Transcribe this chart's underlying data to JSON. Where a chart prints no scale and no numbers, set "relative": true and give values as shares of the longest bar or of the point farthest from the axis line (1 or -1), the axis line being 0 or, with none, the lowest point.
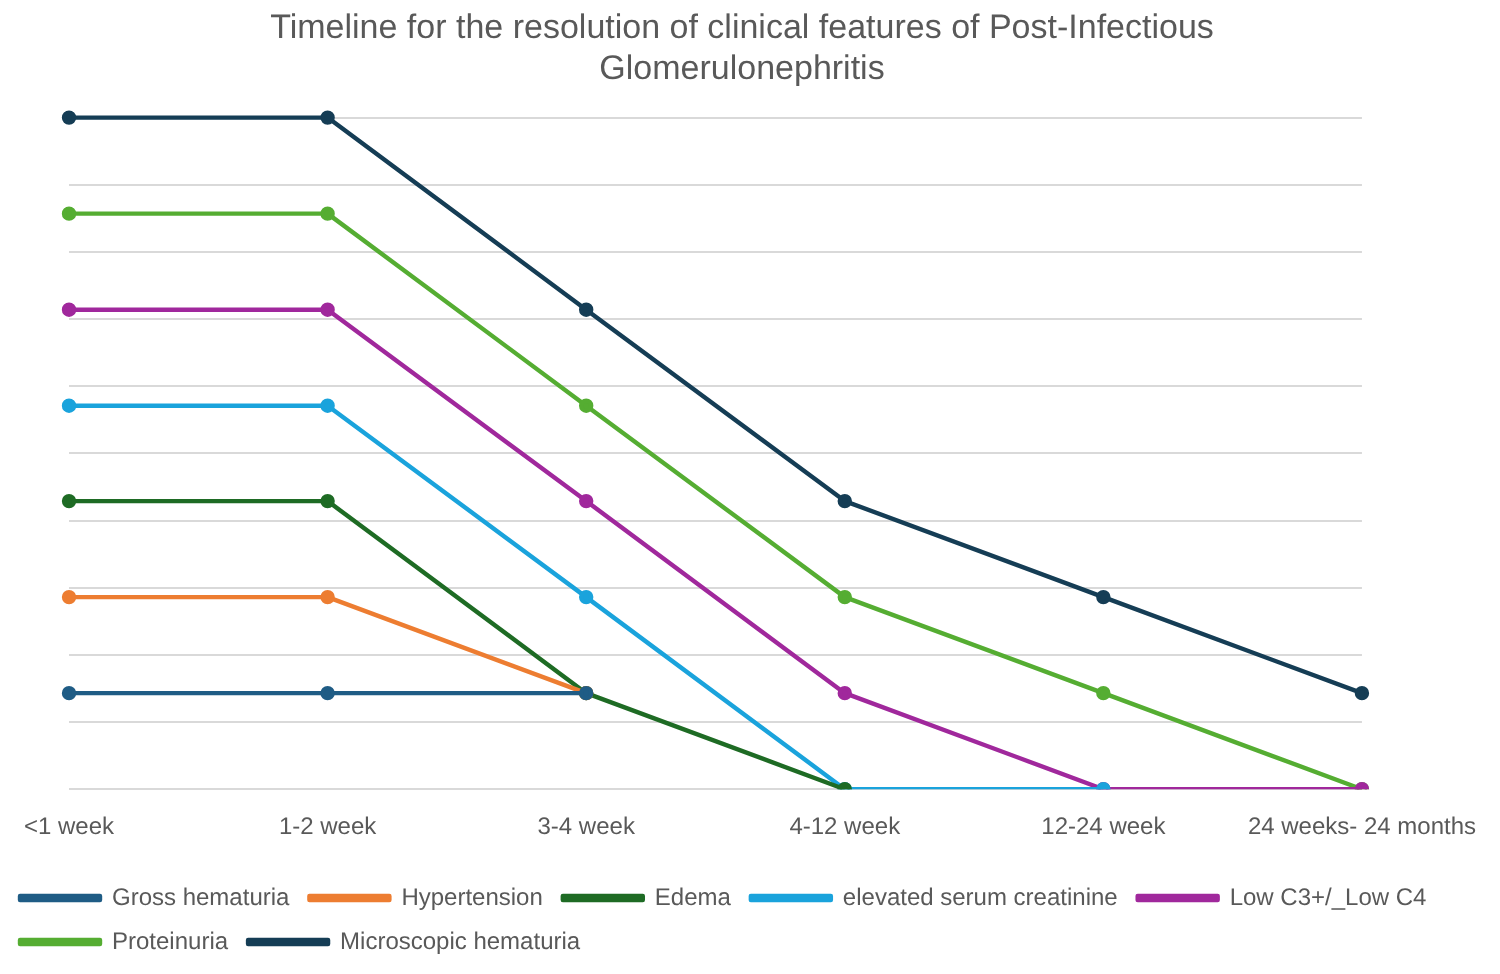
{
  "chart_data": {
    "type": "line",
    "relative": true,
    "title": "Timeline for the resolution of clinical features of Post-Infectious Glomerulonephritis",
    "categories": [
      "<1 week",
      "1-2 week",
      "3-4 week",
      "4-12 week",
      "12-24 week",
      "24 weeks- 24 months"
    ],
    "series": [
      {
        "name": "Gross hematuria",
        "color": "#1f5c85",
        "values": [
          0.143,
          0.143,
          0.143,
          null,
          null,
          null
        ]
      },
      {
        "name": "Hypertension",
        "color": "#ed7d31",
        "values": [
          0.286,
          0.286,
          0.143,
          null,
          null,
          null
        ]
      },
      {
        "name": "Edema",
        "color": "#1e6b24",
        "values": [
          0.429,
          0.429,
          0.143,
          0,
          null,
          null
        ]
      },
      {
        "name": "elevated serum creatinine",
        "color": "#1aa3dc",
        "values": [
          0.571,
          0.571,
          0.286,
          0,
          0,
          null
        ]
      },
      {
        "name": "Low C3+/_Low C4",
        "color": "#a0289c",
        "values": [
          0.714,
          0.714,
          0.429,
          0.143,
          0,
          0
        ]
      },
      {
        "name": "Proteinuria",
        "color": "#55ad32",
        "values": [
          0.857,
          0.857,
          0.571,
          0.286,
          0.143,
          0
        ]
      },
      {
        "name": "Microscopic hematuria",
        "color": "#153d55",
        "values": [
          1,
          1,
          0.714,
          0.429,
          0.286,
          0.143
        ]
      }
    ],
    "grid": "y",
    "legend": "bottom",
    "marker": "circle",
    "line_style": "solid"
  }
}
